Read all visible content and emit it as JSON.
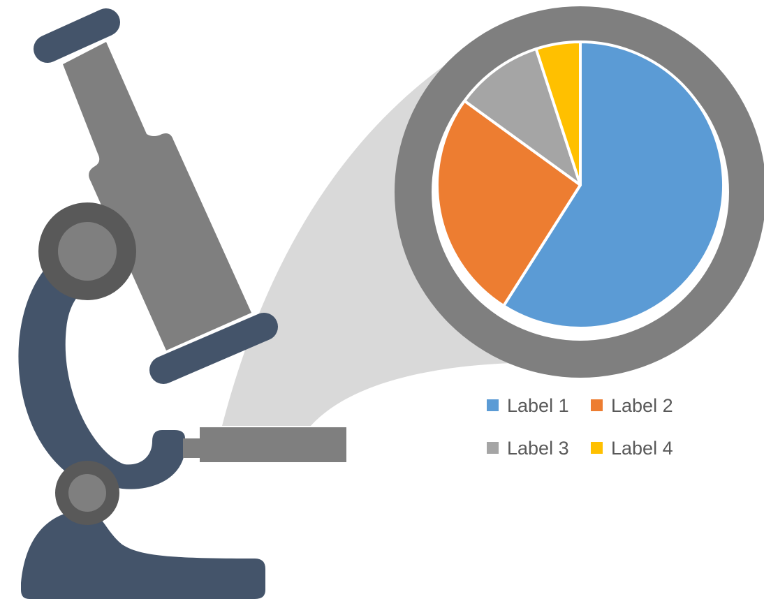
{
  "colors": {
    "navy": "#44546a",
    "tube": "#7f7f7f",
    "knob_dark": "#595959",
    "beam": "#d9d9d9",
    "lens_ring": "#7f7f7f",
    "background": "#ffffff"
  },
  "chart_data": {
    "type": "pie",
    "title": "",
    "start_angle_deg": 0,
    "direction": "clockwise",
    "categories": [
      "Label 1",
      "Label 2",
      "Label 3",
      "Label 4"
    ],
    "values": [
      59,
      26,
      10,
      5
    ],
    "colors": [
      "#5b9bd5",
      "#ed7d31",
      "#a5a5a5",
      "#ffc000"
    ],
    "legend": {
      "position": "bottom-right",
      "rows": [
        [
          "Label 1",
          "Label 2"
        ],
        [
          "Label 3",
          "Label 4"
        ]
      ]
    }
  }
}
